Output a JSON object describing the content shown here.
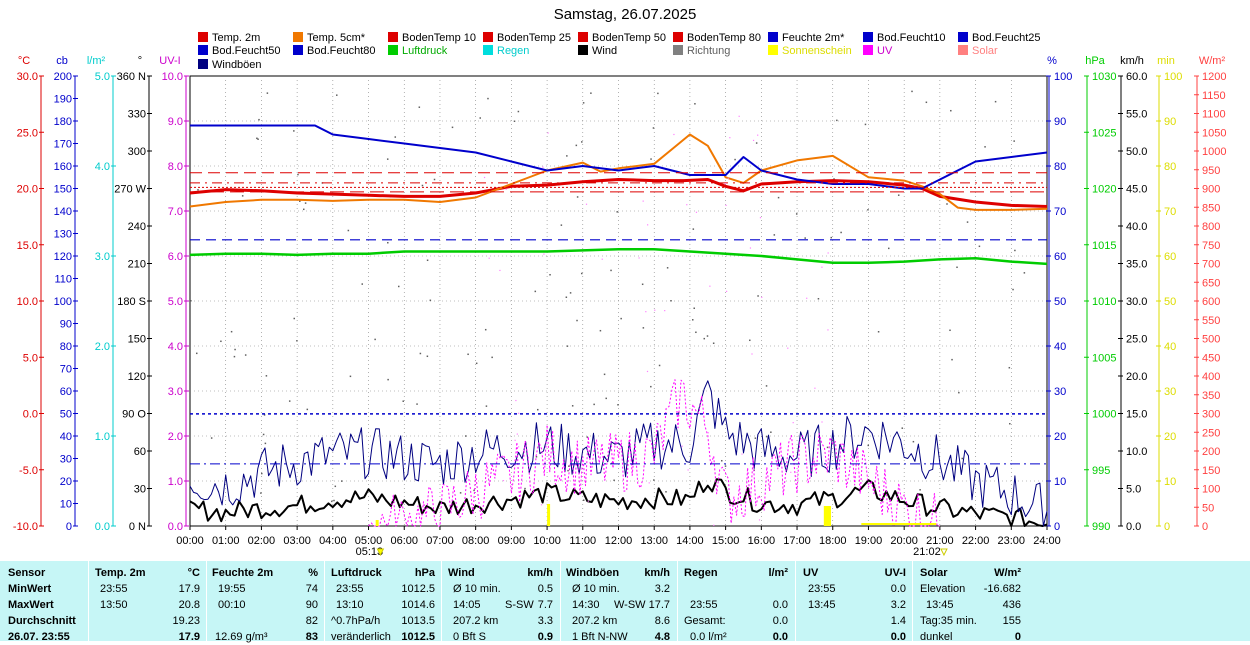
{
  "title": "Samstag, 26.07.2025",
  "legend": [
    {
      "label": "Temp. 2m",
      "color": "#dd0000"
    },
    {
      "label": "Temp. 5cm*",
      "color": "#f07800"
    },
    {
      "label": "BodenTemp 10",
      "color": "#dd0000"
    },
    {
      "label": "BodenTemp 25",
      "color": "#dd0000"
    },
    {
      "label": "BodenTemp 50",
      "color": "#dd0000"
    },
    {
      "label": "BodenTemp 80",
      "color": "#dd0000"
    },
    {
      "label": "Feuchte 2m*",
      "color": "#0000cc"
    },
    {
      "label": "Bod.Feucht10",
      "color": "#0000cc"
    },
    {
      "label": "Bod.Feucht25",
      "color": "#0000cc"
    },
    {
      "label": "Bod.Feucht50",
      "color": "#0000cc"
    },
    {
      "label": "Bod.Feucht80",
      "color": "#0000cc"
    },
    {
      "label": "Luftdruck",
      "color": "#00cc00"
    },
    {
      "label": "Regen",
      "color": "#00dddd"
    },
    {
      "label": "Wind",
      "color": "#000000"
    },
    {
      "label": "Richtung",
      "color": "#808080"
    },
    {
      "label": "Sonnenschein",
      "color": "#ffff00"
    },
    {
      "label": "UV",
      "color": "#ff00ff"
    },
    {
      "label": "Solar",
      "color": "#ff8080"
    },
    {
      "label": "Windböen",
      "color": "#000080"
    }
  ],
  "axes": {
    "temp": {
      "unit": "°C",
      "color": "#dd0000",
      "ticks": [
        "30.0",
        "25.0",
        "20.0",
        "15.0",
        "10.0",
        "5.0",
        "0.0",
        "-5.0",
        "-10.0"
      ]
    },
    "cb": {
      "unit": "cb",
      "color": "#0000cc",
      "ticks": [
        "200",
        "190",
        "180",
        "170",
        "160",
        "150",
        "140",
        "130",
        "120",
        "110",
        "100",
        "90",
        "80",
        "70",
        "60",
        "50",
        "40",
        "30",
        "20",
        "10",
        "0"
      ]
    },
    "rain": {
      "unit": "l/m²",
      "color": "#00cccc",
      "ticks": [
        "5.0",
        "4.0",
        "3.0",
        "2.0",
        "1.0",
        "0.0"
      ]
    },
    "dir": {
      "unit": "°",
      "color": "#000000",
      "ticks": [
        "360 N",
        "330",
        "300",
        "270 W",
        "240",
        "210",
        "180 S",
        "150",
        "120",
        "90 O",
        "60",
        "30",
        "0 N"
      ]
    },
    "uv": {
      "unit": "UV-I",
      "color": "#cc00cc",
      "ticks": [
        "10.0",
        "9.0",
        "8.0",
        "7.0",
        "6.0",
        "5.0",
        "4.0",
        "3.0",
        "2.0",
        "1.0",
        "0.0"
      ]
    },
    "hum": {
      "unit": "%",
      "color": "#0000cc",
      "ticks": [
        "100",
        "90",
        "80",
        "70",
        "60",
        "50",
        "40",
        "30",
        "20",
        "10",
        "0"
      ]
    },
    "press": {
      "unit": "hPa",
      "color": "#00cc00",
      "ticks": [
        "1030",
        "1025",
        "1020",
        "1015",
        "1010",
        "1005",
        "1000",
        "995",
        "990"
      ]
    },
    "kmh": {
      "unit": "km/h",
      "color": "#000000",
      "ticks": [
        "60.0",
        "55.0",
        "50.0",
        "45.0",
        "40.0",
        "35.0",
        "30.0",
        "25.0",
        "20.0",
        "15.0",
        "10.0",
        "5.0",
        "0.0"
      ]
    },
    "min": {
      "unit": "min",
      "color": "#dddd00",
      "ticks": [
        "100",
        "90",
        "80",
        "70",
        "60",
        "50",
        "40",
        "30",
        "20",
        "10",
        "0"
      ]
    },
    "solar": {
      "unit": "W/m²",
      "color": "#ff4040",
      "ticks": [
        "1200",
        "1150",
        "1100",
        "1050",
        "1000",
        "950",
        "900",
        "850",
        "800",
        "750",
        "700",
        "650",
        "600",
        "550",
        "500",
        "450",
        "400",
        "350",
        "300",
        "250",
        "200",
        "150",
        "100",
        "50",
        "0"
      ]
    }
  },
  "x_ticks": [
    "00:00",
    "01:00",
    "02:00",
    "03:00",
    "04:00",
    "05:00",
    "06:00",
    "07:00",
    "08:00",
    "09:00",
    "10:00",
    "11:00",
    "12:00",
    "13:00",
    "14:00",
    "15:00",
    "16:00",
    "17:00",
    "18:00",
    "19:00",
    "20:00",
    "21:00",
    "22:00",
    "23:00",
    "24:00"
  ],
  "sunrise": "05:13",
  "sunset": "21:02",
  "chart_data": {
    "type": "line",
    "x_unit": "hour",
    "x_range": [
      0,
      24
    ],
    "series": [
      {
        "name": "Temp. 2m",
        "axis": "temp",
        "color": "#dd0000",
        "x": [
          0,
          1,
          2,
          3,
          4,
          5,
          6,
          7,
          8,
          9,
          10,
          11,
          12,
          13,
          13.83,
          14.5,
          15,
          15.5,
          16,
          17,
          18,
          19,
          20,
          20.5,
          21,
          22,
          23,
          24
        ],
        "y": [
          19.6,
          19.9,
          19.8,
          19.6,
          19.5,
          19.4,
          19.3,
          19.3,
          19.6,
          20.2,
          20.3,
          20.6,
          20.8,
          20.7,
          20.7,
          20.8,
          20.2,
          19.8,
          20.4,
          20.6,
          20.7,
          20.6,
          20.3,
          20.0,
          19.3,
          18.8,
          18.5,
          18.4
        ]
      },
      {
        "name": "Temp. 5cm*",
        "axis": "temp",
        "color": "#f07800",
        "x": [
          0,
          1,
          2,
          3,
          4,
          5,
          6,
          7,
          8,
          9,
          10,
          11,
          11.5,
          12,
          13,
          13.5,
          14,
          14.5,
          15,
          15.5,
          16,
          17,
          18,
          19,
          20,
          20.5,
          21,
          21.5,
          22,
          23,
          24
        ],
        "y": [
          18.4,
          18.8,
          19.0,
          19.0,
          18.9,
          19.0,
          19.0,
          18.8,
          19.2,
          20.4,
          21.6,
          22.3,
          21.5,
          21.8,
          22.2,
          23.5,
          24.8,
          23.8,
          21.0,
          20.5,
          21.6,
          22.5,
          22.9,
          21.0,
          20.7,
          20.2,
          19.5,
          18.3,
          18.1,
          18.1,
          18.2
        ]
      },
      {
        "name": "Feuchte 2m*",
        "axis": "hum",
        "color": "#0000cc",
        "x": [
          0,
          1,
          2,
          3,
          3.5,
          4,
          5,
          6,
          7,
          8,
          9,
          10,
          11,
          12,
          13,
          14,
          15,
          15.5,
          16,
          17,
          18,
          19,
          20,
          20.5,
          21,
          21.5,
          22,
          23,
          24
        ],
        "y": [
          89,
          89,
          89,
          89,
          89,
          87,
          86,
          85,
          84,
          83,
          81,
          79,
          80,
          79,
          80,
          78,
          78,
          82,
          79,
          77,
          76,
          76,
          75,
          75,
          77,
          79,
          81,
          82,
          83
        ]
      },
      {
        "name": "Luftdruck",
        "axis": "press",
        "color": "#00cc00",
        "x": [
          0,
          1,
          2,
          3,
          4,
          5,
          6,
          7,
          8,
          9,
          10,
          11,
          12,
          13,
          14,
          15,
          16,
          17,
          18,
          19,
          20,
          21,
          22,
          23,
          24
        ],
        "y": [
          1014.1,
          1014.2,
          1014.2,
          1014.1,
          1014.2,
          1014.2,
          1014.4,
          1014.4,
          1014.4,
          1014.4,
          1014.4,
          1014.5,
          1014.6,
          1014.6,
          1014.4,
          1014.2,
          1014.0,
          1013.7,
          1013.4,
          1013.4,
          1013.5,
          1013.7,
          1013.8,
          1013.5,
          1013.3
        ]
      },
      {
        "name": "Wind",
        "axis": "kmh",
        "color": "#000000",
        "x": [
          0,
          1,
          2,
          3,
          4,
          5,
          6,
          7,
          8,
          9,
          10,
          11,
          12,
          13,
          14,
          14.5,
          15,
          16,
          17,
          18,
          19,
          20,
          21,
          22,
          23,
          24
        ],
        "y": [
          2.3,
          1.8,
          2.4,
          2.7,
          3.6,
          3.8,
          3.1,
          2.4,
          3.0,
          3.6,
          4.4,
          3.6,
          3.3,
          3.7,
          3.5,
          6.4,
          4.7,
          3.0,
          2.8,
          3.7,
          4.8,
          3.5,
          2.3,
          1.6,
          1.2,
          0.2
        ]
      },
      {
        "name": "Windböen",
        "axis": "kmh",
        "color": "#000080",
        "x": [
          0,
          1,
          2,
          3,
          4,
          5,
          6,
          7,
          8,
          9,
          10,
          11,
          12,
          13,
          14,
          14.5,
          15,
          16,
          17,
          18,
          19,
          20,
          21,
          22,
          23,
          24
        ],
        "y": [
          6.3,
          5.5,
          7.1,
          8.5,
          9.5,
          9.8,
          9.0,
          8.2,
          9.8,
          10.5,
          10.7,
          9.6,
          9.0,
          10.9,
          11.0,
          17.7,
          12.4,
          10.0,
          9.3,
          10.7,
          12.6,
          11.0,
          8.7,
          5.9,
          4.3,
          2.0
        ]
      },
      {
        "name": "UV",
        "axis": "uv",
        "color": "#ff00ff",
        "x": [
          5,
          6,
          7,
          8,
          9,
          10,
          11,
          12,
          13,
          13.75,
          14.5,
          15,
          16,
          17,
          18,
          19,
          20,
          21
        ],
        "y": [
          0,
          0.1,
          0.3,
          0.8,
          1.1,
          1.6,
          1.3,
          1.4,
          1.6,
          2.9,
          2.2,
          0.6,
          1.0,
          1.4,
          1.6,
          1.0,
          0.4,
          0
        ]
      },
      {
        "name": "BodenTemp 10",
        "axis": "temp",
        "color": "#dd0000",
        "x": [
          0,
          24
        ],
        "y": [
          21.4,
          21.4
        ]
      },
      {
        "name": "Bod.Feucht10",
        "axis": "hum",
        "color": "#0000cc",
        "x": [
          0,
          24
        ],
        "y": [
          24.9,
          24.9
        ]
      },
      {
        "name": "Bod.Feucht25",
        "axis": "hum",
        "color": "#0000cc",
        "x": [
          0,
          24
        ],
        "y": [
          63.6,
          63.6
        ]
      },
      {
        "name": "Bod.Feucht50",
        "axis": "hum",
        "color": "#0000cc",
        "x": [
          0,
          24
        ],
        "y": [
          13.8,
          13.8
        ]
      },
      {
        "name": "Sonnenschein",
        "axis": "min",
        "color": "#ffff00",
        "x": [
          10,
          17.75,
          17.9,
          20.9
        ],
        "y": [
          5,
          5,
          5,
          1
        ]
      }
    ],
    "ylim_temp": [
      -10,
      30
    ],
    "ylim_hum": [
      0,
      100
    ],
    "ylim_press": [
      990,
      1030
    ],
    "ylim_kmh": [
      0,
      60
    ],
    "ylim_uv": [
      0,
      10
    ]
  },
  "table": {
    "row_labels": [
      "Sensor",
      "MinWert",
      "MaxWert",
      "Durchschnitt",
      "26.07. 23:55"
    ],
    "temp": {
      "header": "Temp. 2m",
      "unit": "°C",
      "min_time": "23:55",
      "min": "17.9",
      "max_time": "13:50",
      "max": "20.8",
      "avg": "19.23",
      "cur": "17.9"
    },
    "hum": {
      "header": "Feuchte 2m",
      "unit": "%",
      "min_time": "19:55",
      "min": "74",
      "max_time": "00:10",
      "max": "90",
      "avg": "82",
      "extra": "12.69 g/m³",
      "cur": "83"
    },
    "press": {
      "header": "Luftdruck",
      "unit": "hPa",
      "min_time": "23:55",
      "min": "1012.5",
      "max_time": "13:10",
      "max": "1014.6",
      "avg_label": "^0.7hPa/h",
      "avg": "1013.5",
      "cur_label": "veränderlich",
      "cur": "1012.5"
    },
    "wind": {
      "header": "Wind",
      "unit": "km/h",
      "r1_label": "Ø 10 min.",
      "r1": "0.5",
      "r2_time": "14:05",
      "r2_dir": "S-SW",
      "r2": "7.7",
      "r3_label": "207.2 km",
      "r3": "3.3",
      "r4_label": "0 Bft S",
      "r4": "0.9"
    },
    "gust": {
      "header": "Windböen",
      "unit": "km/h",
      "r1_label": "Ø 10 min.",
      "r1": "3.2",
      "r2_time": "14:30",
      "r2_dir": "W-SW",
      "r2": "17.7",
      "r3_label": "207.2 km",
      "r3": "8.6",
      "r4_label": "1 Bft N-NW",
      "r4": "4.8"
    },
    "rain": {
      "header": "Regen",
      "unit": "l/m²",
      "r2_time": "23:55",
      "r2": "0.0",
      "r3_label": "Gesamt:",
      "r3": "0.0",
      "r4_label": "0.0 l/m²",
      "r4": "0.0"
    },
    "uv": {
      "header": "UV",
      "unit": "UV-I",
      "min_time": "23:55",
      "min": "0.0",
      "max_time": "13:45",
      "max": "3.2",
      "avg": "1.4",
      "cur": "0.0"
    },
    "solar": {
      "header": "Solar",
      "unit": "W/m²",
      "r1_label": "Elevation",
      "r1": "-16.682",
      "r2_time": "13:45",
      "r2": "436",
      "r3_label": "Tag:35 min.",
      "r3": "155",
      "r4_label": "dunkel",
      "r4": "0"
    }
  }
}
